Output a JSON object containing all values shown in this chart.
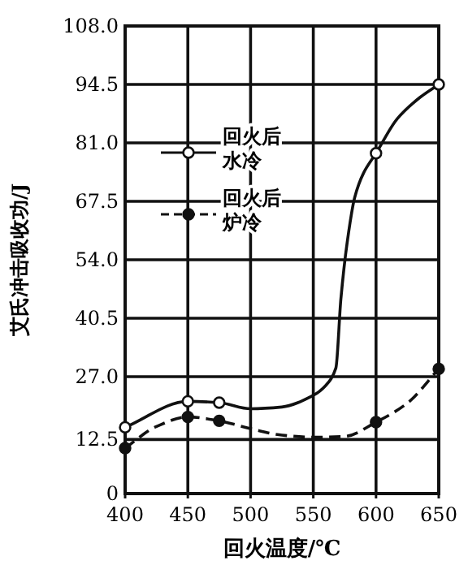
{
  "chart_data": {
    "type": "line",
    "xlabel": "回火温度/℃",
    "ylabel": "艾氏冲击吸收功/J",
    "xlim": [
      400,
      650
    ],
    "xticks": [
      400,
      450,
      500,
      550,
      600,
      650
    ],
    "ylim": [
      0,
      108
    ],
    "yticks": [
      0,
      12.5,
      {
        "value": 27,
        "label": "27.0"
      },
      40.5,
      {
        "value": 54,
        "label": "54.0"
      },
      67.5,
      {
        "value": 81,
        "label": "81.0"
      },
      94.5,
      {
        "value": 108,
        "label": "108.0"
      }
    ],
    "grid": true,
    "legend": "top left",
    "series": [
      {
        "name": "回火后水冷",
        "type": "line",
        "line_style": "solid",
        "color": "#111111",
        "x": [
          400,
          450,
          475,
          500,
          525,
          550,
          560,
          568,
          572,
          577,
          583,
          590,
          600,
          617,
          635,
          650
        ],
        "values": [
          15.3,
          21.3,
          21.0,
          19.6,
          20,
          22.7,
          25,
          29,
          45,
          58,
          68.4,
          74,
          78.6,
          86.6,
          91.5,
          94.5
        ]
      },
      {
        "type": "scatter",
        "marker": "circle",
        "color": "#ffffff",
        "x": [
          400,
          450,
          475,
          600,
          650
        ],
        "values": [
          15.3,
          21.3,
          21.0,
          78.6,
          94.5
        ]
      },
      {
        "name": "回火后炉冷",
        "type": "line",
        "line_style": "dashed",
        "color": "#111111",
        "x": [
          400,
          425,
          450,
          475,
          500,
          525,
          550,
          575,
          600,
          625,
          650
        ],
        "values": [
          10.5,
          15.5,
          17.7,
          16.8,
          15,
          13.5,
          13,
          13.2,
          16.5,
          20.9,
          28.8
        ]
      },
      {
        "type": "scatter",
        "marker": "circle",
        "color": "#111111",
        "x": [
          400,
          450,
          475,
          600,
          650
        ],
        "values": [
          10.5,
          17.7,
          16.8,
          16.5,
          28.8
        ]
      }
    ]
  }
}
